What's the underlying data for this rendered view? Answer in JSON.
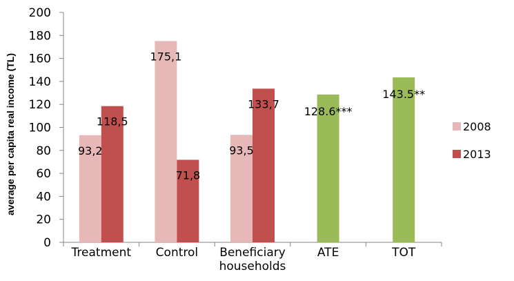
{
  "chart_data": {
    "type": "bar",
    "title": "",
    "xlabel": "",
    "ylabel": "average per capita real income (TL)",
    "ylim": [
      0,
      200
    ],
    "yticks": [
      0,
      20,
      40,
      60,
      80,
      100,
      120,
      140,
      160,
      180,
      200
    ],
    "grid": false,
    "legend_position": "right",
    "categories": [
      [
        "Treatment"
      ],
      [
        "Control"
      ],
      [
        "Beneficiary",
        "households"
      ],
      [
        "ATE"
      ],
      [
        "TOT"
      ]
    ],
    "series": [
      {
        "name": "2008",
        "color": "#e6b9b8",
        "values": [
          93.2,
          175.1,
          93.5,
          null,
          null
        ],
        "labels": [
          "93,2",
          "175,1",
          "93,5",
          "",
          ""
        ]
      },
      {
        "name": "2013",
        "color": "#c0504d",
        "values": [
          118.5,
          71.8,
          133.7,
          null,
          null
        ],
        "labels": [
          "118,5",
          "71,8",
          "133,7",
          "",
          ""
        ]
      },
      {
        "name": "",
        "color": "#9bbb59",
        "values": [
          null,
          null,
          null,
          128.6,
          143.5
        ],
        "labels": [
          "",
          "",
          "",
          "128.6***",
          "143.5**"
        ]
      }
    ]
  }
}
